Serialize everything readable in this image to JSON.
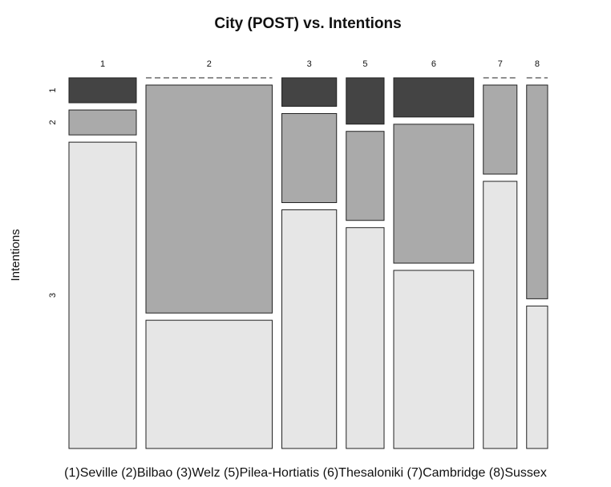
{
  "chart_data": {
    "type": "mosaic",
    "title": "City (POST) vs.  Intentions",
    "ylabel": "Intentions",
    "caption": "(1)Seville (2)Bilbao (3)Welz (5)Pilea-Hortiatis (6)Thesaloniki (7)Cambridge (8)Sussex",
    "categories": [
      "1",
      "2",
      "3",
      "5",
      "6",
      "7",
      "8"
    ],
    "column_widths": [
      16,
      30,
      13,
      9,
      19,
      8,
      5
    ],
    "series": [
      {
        "name": "1",
        "color": "#444444",
        "values": [
          7,
          0,
          8,
          13,
          11,
          0,
          0
        ]
      },
      {
        "name": "2",
        "color": "#aaaaaa",
        "values": [
          7,
          64,
          25,
          25,
          39,
          25,
          60
        ]
      },
      {
        "name": "3",
        "color": "#e6e6e6",
        "values": [
          86,
          36,
          67,
          62,
          50,
          75,
          40
        ]
      }
    ]
  }
}
